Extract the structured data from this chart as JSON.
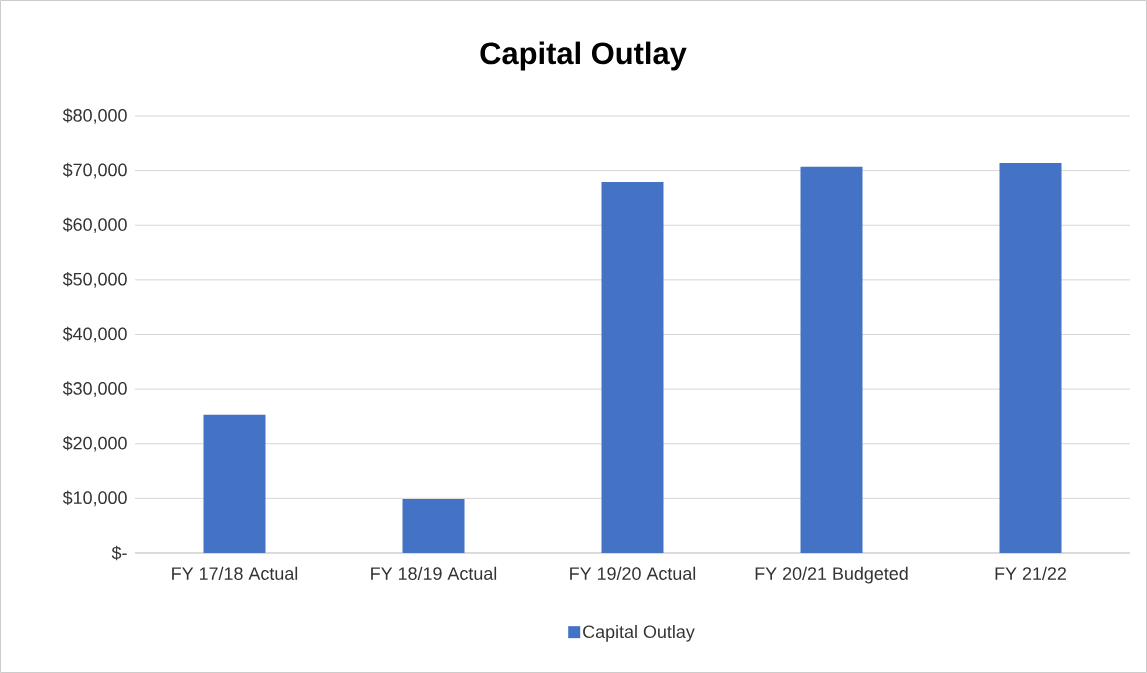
{
  "chart_data": {
    "type": "bar",
    "title": "Capital Outlay",
    "categories": [
      "FY 17/18 Actual",
      "FY 18/19 Actual",
      "FY 19/20 Actual",
      "FY 20/21 Budgeted",
      "FY 21/22"
    ],
    "series": [
      {
        "name": "Capital Outlay",
        "color": "#4472c4",
        "values": [
          25300,
          9900,
          67900,
          70700,
          71400
        ]
      }
    ],
    "ylim": [
      0,
      80000
    ],
    "yticks": [
      {
        "value": 0,
        "label": "$-"
      },
      {
        "value": 10000,
        "label": "$10,000"
      },
      {
        "value": 20000,
        "label": "$20,000"
      },
      {
        "value": 30000,
        "label": "$30,000"
      },
      {
        "value": 40000,
        "label": "$40,000"
      },
      {
        "value": 50000,
        "label": "$50,000"
      },
      {
        "value": 60000,
        "label": "$60,000"
      },
      {
        "value": 70000,
        "label": "$70,000"
      },
      {
        "value": 80000,
        "label": "$80,000"
      }
    ],
    "grid": "y",
    "legend": "bottom"
  }
}
